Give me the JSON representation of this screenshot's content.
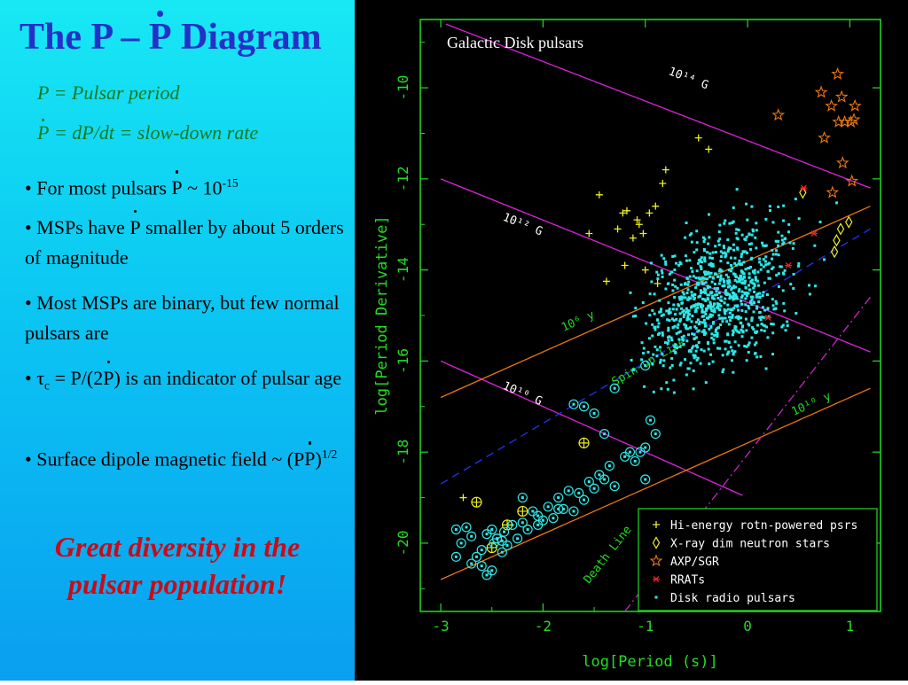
{
  "slide": {
    "title_pre": "The P – ",
    "title_pdot": "P",
    "title_post": " Diagram",
    "def1": "P = Pulsar period",
    "def2_p": "P",
    "def2_rest": " = dP/dt = slow-down rate",
    "b1_pre": "• For most pulsars ",
    "b1_p": "P",
    "b1_mid": " ~ 10",
    "b1_sup": "-15",
    "b2_pre": "• MSPs have ",
    "b2_p": "P",
    "b2_post": " smaller by about 5 orders of magnitude",
    "b3": "• Most MSPs are binary, but few normal pulsars are",
    "b4_tau": "• τ",
    "b4_sub": "c",
    "b4_mid": " = P/(2",
    "b4_p": "P",
    "b4_post": ") is an indicator of pulsar age",
    "b5_pre": "• Surface dipole magnetic field ~ (P",
    "b5_p": "P",
    "b5_close": ")",
    "b5_sup": "1/2",
    "conclusion": "Great diversity in the pulsar population!"
  },
  "colors": {
    "title": "#2430c8",
    "defs": "#137a1f",
    "conclusion": "#cc0a16",
    "axes": "#22dd22",
    "field_lines": "#dd22dd",
    "age_lines": "#ee7711",
    "spinup": "#2233ee",
    "death": "#cc22cc",
    "radio": "#2ee8e8",
    "hi_energy": "#eeee22",
    "xdins": "#eeee22",
    "axp": "#ee7711",
    "rrat": "#ee2222"
  },
  "chart_data": {
    "type": "scatter",
    "title": "Galactic Disk pulsars",
    "xlabel": "log[Period (s)]",
    "ylabel": "log[Period Derivative]",
    "xlim": [
      -3.2,
      1.3
    ],
    "ylim": [
      -21.5,
      -8.5
    ],
    "xticks": [
      "-3",
      "-2",
      "-1",
      "0",
      "1"
    ],
    "yticks": [
      "-10",
      "-12",
      "-14",
      "-16",
      "-18",
      "-20"
    ],
    "xtick_values": [
      -3,
      -2,
      -1,
      0,
      1
    ],
    "ytick_values": [
      -10,
      -12,
      -14,
      -16,
      -18,
      -20
    ],
    "grid": false,
    "legend_position": "bottom-right",
    "legend": [
      "Hi-energy rotn-powered psrs",
      "X-ray dim neutron stars",
      "AXP/SGR",
      "RRATs",
      "Disk radio pulsars"
    ],
    "reference_lines": [
      {
        "label": "10¹⁴ G",
        "kind": "field",
        "x": [
          -2.95,
          1.2
        ],
        "y": [
          -8.6,
          -12.2
        ]
      },
      {
        "label": "10¹² G",
        "kind": "field",
        "x": [
          -3.0,
          1.2
        ],
        "y": [
          -12.0,
          -15.8
        ]
      },
      {
        "label": "10¹⁰ G",
        "kind": "field",
        "x": [
          -3.0,
          -0.05
        ],
        "y": [
          -16.0,
          -18.95
        ]
      },
      {
        "label": "10⁶ y",
        "kind": "age",
        "x": [
          -3.0,
          1.2
        ],
        "y": [
          -16.8,
          -12.6
        ]
      },
      {
        "label": "10¹⁰ y",
        "kind": "age",
        "x": [
          -3.0,
          1.2
        ],
        "y": [
          -20.8,
          -16.6
        ]
      },
      {
        "label": "Spin-up Line",
        "kind": "spinup",
        "x": [
          -3.0,
          1.2
        ],
        "y": [
          -18.7,
          -13.1
        ]
      },
      {
        "label": "Death Line",
        "kind": "death",
        "x": [
          -1.2,
          1.2
        ],
        "y": [
          -21.5,
          -14.6
        ]
      }
    ],
    "series": [
      {
        "name": "Hi-energy rotn-powered psrs",
        "marker": "plus",
        "x": [
          -0.48,
          -0.38,
          -0.8,
          -0.83,
          -1.45,
          -1.18,
          -1.08,
          -0.96,
          -1.06,
          -0.9,
          -1.22,
          -0.88,
          -1.27,
          -1.12,
          -1.02,
          -1.38,
          -1.2,
          -1.0,
          -2.78,
          -1.55
        ],
        "y": [
          -11.1,
          -11.35,
          -11.8,
          -12.1,
          -12.35,
          -12.7,
          -12.9,
          -12.75,
          -13.0,
          -12.6,
          -12.75,
          -14.3,
          -13.1,
          -13.3,
          -13.2,
          -14.25,
          -13.9,
          -14.0,
          -19.0,
          -13.2
        ]
      },
      {
        "name": "Hi-energy rotn-powered psrs (binary)",
        "marker": "circled-plus",
        "x": [
          -1.6,
          -2.2,
          -2.65,
          -2.5,
          -2.35
        ],
        "y": [
          -17.8,
          -19.3,
          -19.1,
          -20.1,
          -19.6
        ]
      },
      {
        "name": "X-ray dim neutron stars",
        "marker": "diamond",
        "x": [
          0.54,
          0.85,
          0.91,
          0.99,
          0.87
        ],
        "y": [
          -12.3,
          -13.6,
          -13.1,
          -12.95,
          -13.35
        ]
      },
      {
        "name": "AXP/SGR",
        "marker": "star",
        "x": [
          0.88,
          0.72,
          0.82,
          0.92,
          1.05,
          0.89,
          1.04,
          0.3,
          0.75,
          0.93,
          1.02,
          0.83,
          0.95,
          1.01
        ],
        "y": [
          -9.7,
          -10.1,
          -10.4,
          -10.2,
          -10.4,
          -10.75,
          -10.7,
          -10.6,
          -11.1,
          -11.65,
          -12.05,
          -12.3,
          -10.75,
          -10.75
        ]
      },
      {
        "name": "RRATs",
        "marker": "asterisk",
        "x": [
          0.55,
          0.65,
          0.4,
          0.2
        ],
        "y": [
          -12.2,
          -13.2,
          -13.9,
          -15.05
        ]
      },
      {
        "name": "Disk radio pulsars (binary)",
        "marker": "circled-dot",
        "x": [
          -2.85,
          -2.8,
          -2.7,
          -2.65,
          -2.6,
          -2.55,
          -2.5,
          -2.48,
          -2.45,
          -2.4,
          -2.38,
          -2.35,
          -2.3,
          -2.25,
          -2.2,
          -2.15,
          -2.1,
          -2.05,
          -2.0,
          -1.95,
          -1.9,
          -1.85,
          -1.8,
          -1.75,
          -1.7,
          -1.65,
          -1.6,
          -1.55,
          -1.5,
          -1.45,
          -1.4,
          -1.35,
          -1.3,
          -1.2,
          -1.1,
          -1.05,
          -1.0,
          -0.9,
          -2.75,
          -2.6,
          -2.55,
          -2.45,
          -2.7,
          -2.5,
          -2.2,
          -1.85,
          -1.6,
          -1.4,
          -1.15,
          -1.0,
          -0.95,
          -1.3,
          -1.5,
          -1.7,
          -2.05,
          -2.4,
          -2.85,
          -1.0
        ],
        "y": [
          -19.7,
          -20.0,
          -19.85,
          -20.3,
          -20.15,
          -19.8,
          -20.6,
          -20.0,
          -19.9,
          -20.2,
          -19.75,
          -20.05,
          -19.6,
          -19.9,
          -19.55,
          -19.7,
          -19.3,
          -19.6,
          -19.5,
          -19.2,
          -19.45,
          -19.0,
          -19.25,
          -18.85,
          -19.3,
          -18.9,
          -19.05,
          -18.65,
          -18.8,
          -18.5,
          -18.6,
          -18.3,
          -18.75,
          -18.1,
          -18.2,
          -18.0,
          -17.9,
          -17.6,
          -19.65,
          -20.5,
          -20.7,
          -19.9,
          -20.45,
          -19.7,
          -19.0,
          -19.25,
          -17.0,
          -17.6,
          -18.0,
          -18.6,
          -17.3,
          -16.6,
          -17.15,
          -16.95,
          -19.4,
          -19.95,
          -20.3,
          -16.1
        ]
      },
      {
        "name": "Disk radio pulsars",
        "marker": "dot",
        "distribution": "main cluster centered near log P = -0.3, log Pdot = -14.6, spanning log P -1.2 to 0.9 and log Pdot -17.5 to -12.0"
      }
    ]
  }
}
